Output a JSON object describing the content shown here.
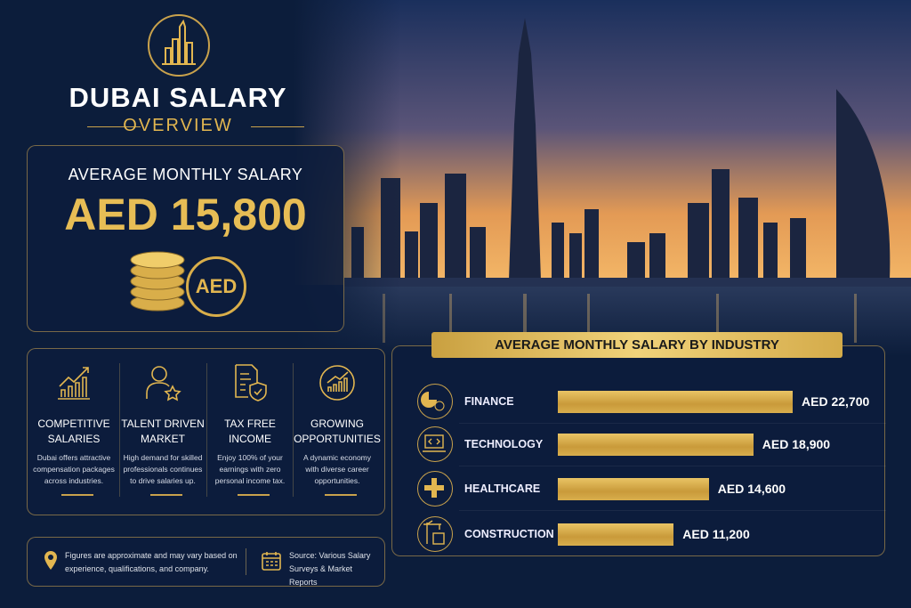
{
  "header": {
    "title": "DUBAI SALARY",
    "subtitle": "OVERVIEW",
    "logo_icon": "skyline-icon"
  },
  "average": {
    "label": "AVERAGE MONTHLY SALARY",
    "value": "AED 15,800",
    "badge": "AED"
  },
  "features": [
    {
      "icon": "growth-chart-icon",
      "title_1": "COMPETITIVE",
      "title_2": "SALARIES",
      "desc": "Dubai offers attractive compensation packages across industries."
    },
    {
      "icon": "person-star-icon",
      "title_1": "TALENT DRIVEN",
      "title_2": "MARKET",
      "desc": "High demand for skilled professionals continues to drive salaries up."
    },
    {
      "icon": "document-shield-icon",
      "title_1": "TAX FREE",
      "title_2": "INCOME",
      "desc": "Enjoy 100% of your earnings with zero personal income tax."
    },
    {
      "icon": "circle-growth-icon",
      "title_1": "GROWING",
      "title_2": "OPPORTUNITIES",
      "desc": "A dynamic economy with diverse career opportunities."
    }
  ],
  "footer": {
    "note": "Figures are approximate and may vary based on experience, qualifications, and company.",
    "source": "Source: Various Salary Surveys & Market Reports"
  },
  "colors": {
    "navy": "#0c1d3b",
    "gold": "#e2b650"
  },
  "chart_data": {
    "type": "bar",
    "orientation": "horizontal",
    "title": "AVERAGE MONTHLY SALARY BY INDUSTRY",
    "categories": [
      "FINANCE",
      "TECHNOLOGY",
      "HEALTHCARE",
      "CONSTRUCTION"
    ],
    "icons": [
      "finance-pie-icon",
      "laptop-code-icon",
      "medical-cross-icon",
      "crane-building-icon"
    ],
    "values": [
      22700,
      18900,
      14600,
      11200
    ],
    "labels": [
      "AED 22,700",
      "AED 18,900",
      "AED 14,600",
      "AED 11,200"
    ],
    "unit": "AED",
    "grid": false
  }
}
